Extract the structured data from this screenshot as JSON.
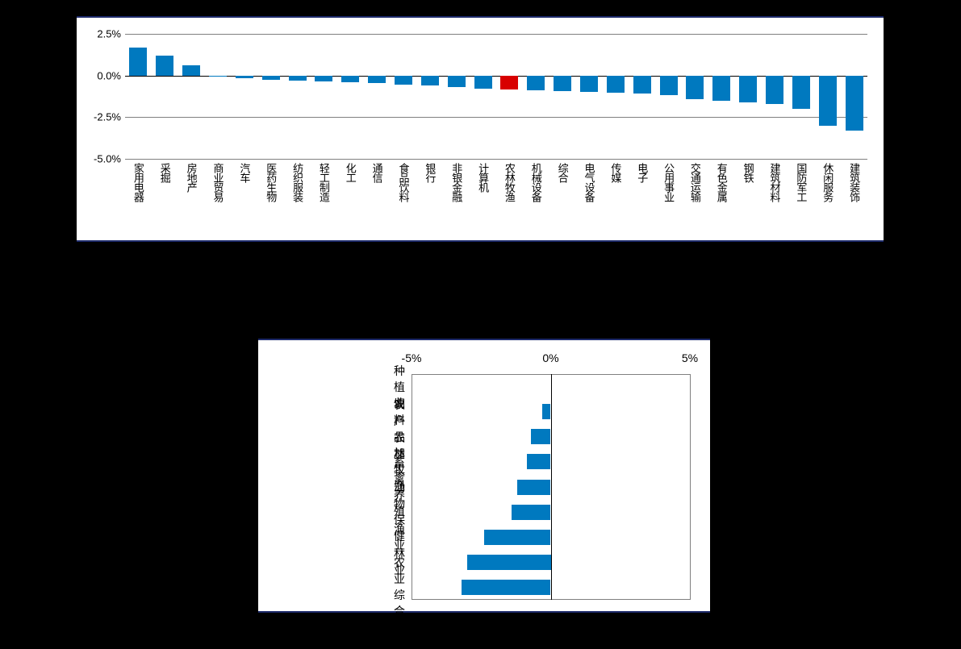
{
  "chart1": {
    "type": "bar",
    "ylim": [
      -5.0,
      2.5
    ],
    "ytick_step": 2.5,
    "ytick_labels": [
      "-5.0%",
      "-2.5%",
      "0.0%",
      "2.5%"
    ],
    "bar_color": "#0079bf",
    "highlight_color": "#d80000",
    "grid_color": "#808080",
    "background_color": "#ffffff",
    "border_color": "#1e2b6b",
    "label_fontsize": 13,
    "categories": [
      "家用电器",
      "采掘",
      "房地产",
      "商业贸易",
      "汽车",
      "医药生物",
      "纺织服装",
      "轻工制造",
      "化工",
      "通信",
      "食品饮料",
      "银行",
      "非银金融",
      "计算机",
      "农林牧渔",
      "机械设备",
      "综合",
      "电气设备",
      "传媒",
      "电子",
      "公用事业",
      "交通运输",
      "有色金属",
      "钢铁",
      "建筑材料",
      "国防军工",
      "休闲服务",
      "建筑装饰"
    ],
    "values": [
      1.7,
      1.2,
      0.6,
      -0.05,
      -0.15,
      -0.25,
      -0.3,
      -0.35,
      -0.4,
      -0.45,
      -0.55,
      -0.6,
      -0.7,
      -0.8,
      -0.85,
      -0.9,
      -0.95,
      -1.0,
      -1.05,
      -1.1,
      -1.2,
      -1.4,
      -1.5,
      -1.6,
      -1.7,
      -2.0,
      -3.0,
      -3.3
    ],
    "highlight_index": 14
  },
  "chart2": {
    "type": "bar-horizontal",
    "xlim": [
      -5,
      5
    ],
    "xtick_step": 5,
    "xtick_labels": [
      "-5%",
      "0%",
      "5%"
    ],
    "bar_color": "#0079bf",
    "grid_color": "#808080",
    "background_color": "#ffffff",
    "border_color": "#1e2b6b",
    "label_fontsize": 14,
    "categories": [
      "种植业",
      "饲料",
      "农产品加工",
      "农林牧渔",
      "畜禽养殖",
      "动物保健",
      "渔业",
      "林业",
      "农业综合"
    ],
    "values": [
      0.0,
      -0.3,
      -0.7,
      -0.85,
      -1.2,
      -1.4,
      -2.4,
      -3.0,
      -3.2
    ]
  }
}
